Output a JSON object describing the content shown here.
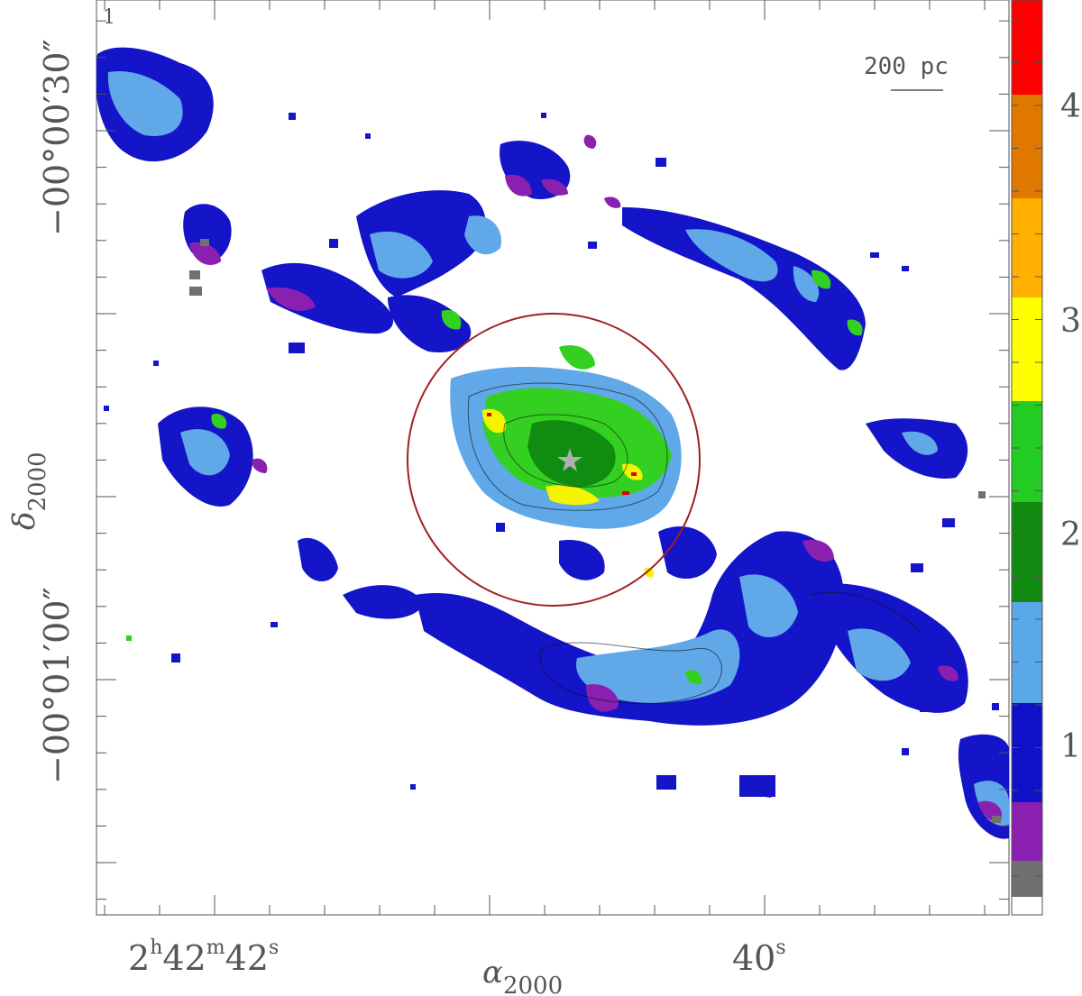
{
  "panel": {
    "index_label": "1"
  },
  "scale_bar": {
    "label": "200 pc"
  },
  "axes": {
    "x_label_main": "α",
    "x_label_sub": "2000",
    "y_label_main": "δ",
    "y_label_sub": "2000",
    "x_ticks": [
      {
        "h": "2",
        "hs": "h",
        "m": "42",
        "ms": "m",
        "s": "42",
        "ss": "s"
      },
      {
        "s": "40",
        "ss": "s"
      }
    ],
    "y_ticks": [
      "−00°00′30″",
      "−00°01′00″"
    ]
  },
  "colorbar": {
    "tick_labels": [
      "1",
      "2",
      "3",
      "4"
    ],
    "colors": [
      "#707070",
      "#808080",
      "#8a20b0",
      "#1010c8",
      "#5aa8e8",
      "#108a10",
      "#22cc22",
      "#ffff00",
      "#ffb000",
      "#e07800",
      "#ff0000"
    ]
  },
  "map_colors": {
    "gray": "#707070",
    "purple": "#8a20b0",
    "blue": "#1414c8",
    "lightblue": "#60a8e8",
    "darkgreen": "#108c10",
    "green": "#33d022",
    "yellow": "#f4f400",
    "red": "#e00000",
    "circle": "#a02020",
    "star": "#b0b0b0"
  }
}
